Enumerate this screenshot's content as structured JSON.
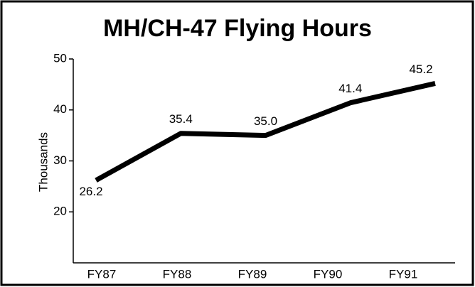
{
  "chart_data": {
    "type": "line",
    "title": "MH/CH-47 Flying Hours",
    "y_label": "Thousands",
    "categories": [
      "FY87",
      "FY88",
      "FY89",
      "FY90",
      "FY91"
    ],
    "series": [
      {
        "name": "Flying Hours",
        "color": "#000000",
        "values": [
          26.2,
          35.4,
          35.0,
          41.4,
          45.2
        ],
        "value_labels": [
          "26.2",
          "35.4",
          "35.0",
          "41.4",
          "45.2"
        ]
      }
    ],
    "ylim": [
      10,
      50
    ],
    "yticks": [
      20,
      30,
      40,
      50
    ],
    "grid": false
  }
}
